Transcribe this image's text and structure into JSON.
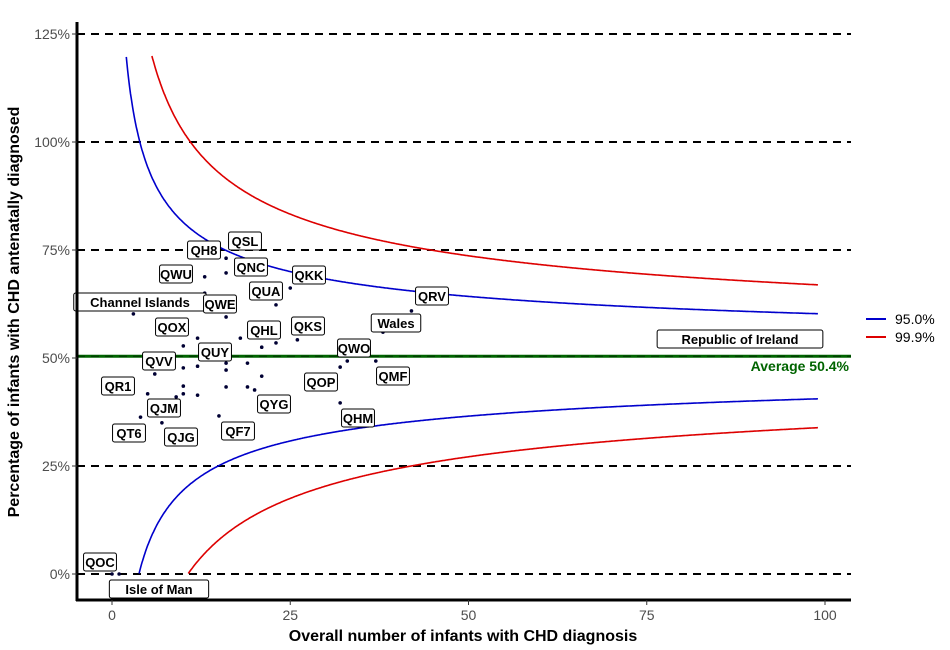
{
  "chart_data": {
    "type": "scatter",
    "title": "",
    "xlabel": "Overall number of infants with CHD diagnosis",
    "ylabel": "Percentage of infants with CHD antenatally diagnosed",
    "xlim": [
      -5,
      104
    ],
    "ylim": [
      -6,
      127
    ],
    "x_ticks": [
      "0",
      "25",
      "50",
      "75",
      "100"
    ],
    "y_ticks": [
      "0%",
      "25%",
      "50%",
      "75%",
      "100%",
      "125%"
    ],
    "grid": "horizontal dashed lines at y ticks",
    "average": {
      "value": 50.4,
      "label": "Average 50.4%",
      "color": "#006400"
    },
    "control_limits": [
      {
        "name": "95.0%",
        "z": 1.96,
        "color": "#0000cc"
      },
      {
        "name": "99.9%",
        "z": 3.29,
        "color": "#dd0000"
      }
    ],
    "legend_position": "right",
    "points": [
      {
        "label": "QSL",
        "x": 16,
        "y": 73.1
      },
      {
        "label": "QH8",
        "x": 13,
        "y": 68.8
      },
      {
        "label": "QNC",
        "x": 16,
        "y": 69.7
      },
      {
        "label": "QWU",
        "x": 13,
        "y": 65.0
      },
      {
        "label": "QKK",
        "x": 25,
        "y": 66.2
      },
      {
        "label": "QUA",
        "x": 23,
        "y": 62.3
      },
      {
        "label": "Channel Islands",
        "x": 3,
        "y": 60.2
      },
      {
        "label": "QWE",
        "x": 16,
        "y": 59.5
      },
      {
        "label": "QOX",
        "x": 12,
        "y": 54.6
      },
      {
        "label": "QHL",
        "x": 21,
        "y": 52.5
      },
      {
        "label": "QKS",
        "x": 26,
        "y": 54.2
      },
      {
        "label": "QUY",
        "x": 12,
        "y": 48.1
      },
      {
        "label": "QVV",
        "x": 6,
        "y": 46.3
      },
      {
        "label": "QR1",
        "x": 5,
        "y": 41.7
      },
      {
        "label": "QJM",
        "x": 9,
        "y": 41.0
      },
      {
        "label": "QT6",
        "x": 4,
        "y": 36.3
      },
      {
        "label": "QJG",
        "x": 7,
        "y": 35.0
      },
      {
        "label": "QF7",
        "x": 15,
        "y": 36.6
      },
      {
        "label": "QYG",
        "x": 20,
        "y": 42.6
      },
      {
        "label": "QOP",
        "x": 32,
        "y": 47.9
      },
      {
        "label": "QWO",
        "x": 33,
        "y": 49.3
      },
      {
        "label": "QMF",
        "x": 37,
        "y": 49.3
      },
      {
        "label": "QHM",
        "x": 32,
        "y": 39.6
      },
      {
        "label": "Wales",
        "x": 38,
        "y": 56.0
      },
      {
        "label": "QRV",
        "x": 42,
        "y": 60.9
      },
      {
        "label": "Republic of Ireland",
        "x": 99,
        "y": 55.1
      },
      {
        "label": "QOC",
        "x": 0,
        "y": 0
      },
      {
        "label": "Isle of Man",
        "x": 1,
        "y": 0
      },
      {
        "label": "",
        "x": 18,
        "y": 54.6
      },
      {
        "label": "",
        "x": 23,
        "y": 53.5
      },
      {
        "label": "",
        "x": 10,
        "y": 52.8
      },
      {
        "label": "",
        "x": 16,
        "y": 48.8
      },
      {
        "label": "",
        "x": 19,
        "y": 48.8
      },
      {
        "label": "",
        "x": 10,
        "y": 47.7
      },
      {
        "label": "",
        "x": 16,
        "y": 47.2
      },
      {
        "label": "",
        "x": 21,
        "y": 45.8
      },
      {
        "label": "",
        "x": 10,
        "y": 43.5
      },
      {
        "label": "",
        "x": 16,
        "y": 43.3
      },
      {
        "label": "",
        "x": 19,
        "y": 43.3
      },
      {
        "label": "",
        "x": 10,
        "y": 41.7
      },
      {
        "label": "",
        "x": 12,
        "y": 41.4
      }
    ]
  }
}
